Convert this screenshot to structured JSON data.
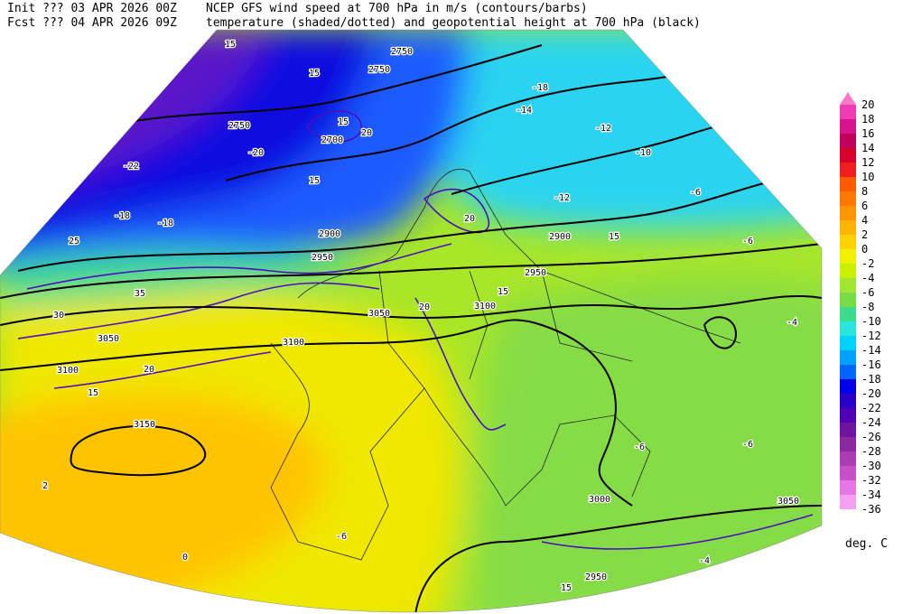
{
  "header": {
    "init_label": "Init ??? 03 APR 2026 00Z",
    "title_line1": "NCEP GFS wind speed at 700 hPa in m/s (contours/barbs)",
    "fcst_label": "Fcst ??? 04 APR 2026 09Z",
    "title_line2": "temperature (shaded/dotted) and geopotential height at 700 hPa (black)"
  },
  "colorbar": {
    "levels": [
      20,
      18,
      16,
      14,
      12,
      10,
      8,
      6,
      4,
      2,
      0,
      -2,
      -4,
      -6,
      -8,
      -10,
      -12,
      -14,
      -16,
      -18,
      -20,
      -22,
      -24,
      -26,
      -28,
      -30,
      -32,
      -34,
      -36
    ],
    "colors": [
      "#f03cb4",
      "#d8148c",
      "#c0005a",
      "#d80028",
      "#f01e1e",
      "#ff5a00",
      "#ff7800",
      "#ff9600",
      "#ffb400",
      "#ffd200",
      "#f0f000",
      "#c8f000",
      "#a0e632",
      "#78dc46",
      "#3cdc8c",
      "#28e6dc",
      "#00d2ff",
      "#00a0ff",
      "#0064ff",
      "#0000e6",
      "#2800c8",
      "#5000b4",
      "#6e14a0",
      "#8c28a0",
      "#aa3cb4",
      "#c850c8",
      "#e678e6",
      "#f5a0f0"
    ],
    "above_color": "#ff78c8",
    "unit": "deg. C"
  },
  "map_labels": [
    2750,
    2750,
    2750,
    2700,
    15,
    15,
    15,
    20,
    15,
    -20,
    -22,
    -18,
    -18,
    -18,
    -14,
    -12,
    -10,
    -12,
    -6,
    2900,
    2950,
    2950,
    2900,
    15,
    3050,
    3100,
    20,
    3050,
    3100,
    3100,
    20,
    15,
    3150,
    -4,
    -6,
    -6,
    -6,
    3000,
    3050,
    2950,
    15,
    2,
    0,
    -6,
    -4,
    15,
    20,
    30,
    35,
    25
  ]
}
